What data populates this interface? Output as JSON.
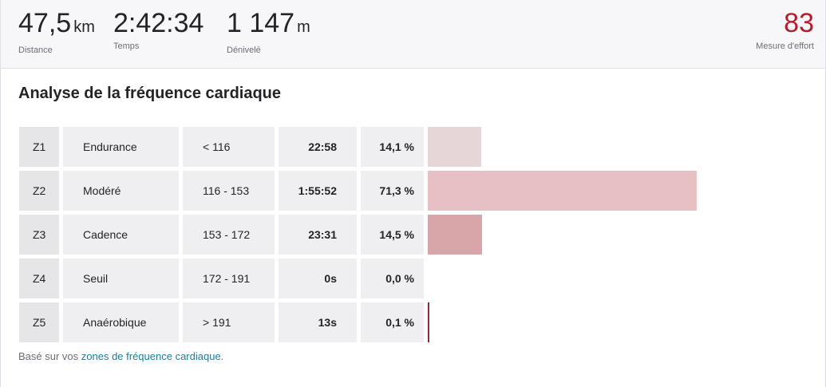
{
  "stats": {
    "distance": {
      "value": "47,5",
      "unit": "km",
      "label": "Distance"
    },
    "time": {
      "value": "2:42:34",
      "label": "Temps"
    },
    "elevation": {
      "value": "1 147",
      "unit": "m",
      "label": "Dénivelé"
    },
    "effort": {
      "value": "83",
      "label": "Mesure d'effort"
    }
  },
  "hr": {
    "title": "Analyse de la fréquence cardiaque",
    "zones": [
      {
        "zone": "Z1",
        "name": "Endurance",
        "range": "< 116",
        "time": "22:58",
        "percent": "14,1 %",
        "share": 14.1,
        "color": "#e6d6d8"
      },
      {
        "zone": "Z2",
        "name": "Modéré",
        "range": "116 - 153",
        "time": "1:55:52",
        "percent": "71,3 %",
        "share": 71.3,
        "color": "#e6c0c2"
      },
      {
        "zone": "Z3",
        "name": "Cadence",
        "range": "153 - 172",
        "time": "23:31",
        "percent": "14,5 %",
        "share": 14.5,
        "color": "#d8a6a8"
      },
      {
        "zone": "Z4",
        "name": "Seuil",
        "range": "172 - 191",
        "time": "0s",
        "percent": "0,0 %",
        "share": 0,
        "color": "#c47c80"
      },
      {
        "zone": "Z5",
        "name": "Anaérobique",
        "range": "> 191",
        "time": "13s",
        "percent": "0,1 %",
        "share": 0.1,
        "color": "#8c2a3a"
      }
    ],
    "footer_prefix": "Basé sur vos ",
    "footer_link": "zones de fréquence cardiaque",
    "footer_suffix": "."
  }
}
